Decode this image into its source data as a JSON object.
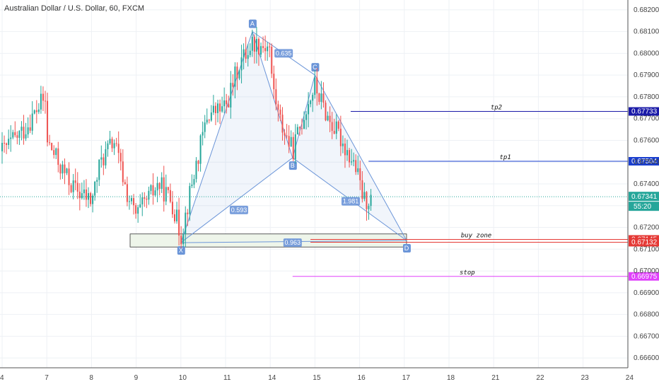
{
  "chart_data": {
    "type": "candlestick",
    "title": "Australian Dollar / U.S. Dollar, 60, FXCM",
    "ylim": [
      0.66555,
      0.68245
    ],
    "y_ticks": [
      "0.68200",
      "0.68100",
      "0.68000",
      "0.67900",
      "0.67800",
      "0.67700",
      "0.67600",
      "0.67500",
      "0.67400",
      "0.67300",
      "0.67200",
      "0.67100",
      "0.67000",
      "0.66900",
      "0.66800",
      "0.66700",
      "0.66600"
    ],
    "x_ticks": [
      "4",
      "7",
      "8",
      "9",
      "10",
      "11",
      "14",
      "15",
      "16",
      "17",
      "18",
      "21",
      "22",
      "23",
      "24"
    ],
    "current_price": {
      "value": "0.67341",
      "countdown": "55:20",
      "color": "#26a69a"
    },
    "pattern": {
      "points": [
        {
          "label": "X",
          "x": 10.0,
          "y": 0.6713
        },
        {
          "label": "A",
          "x": 11.6,
          "y": 0.681
        },
        {
          "label": "B",
          "x": 14.5,
          "y": 0.6752
        },
        {
          "label": "C",
          "x": 15.0,
          "y": 0.679
        },
        {
          "label": "D",
          "x": 17.05,
          "y": 0.6714
        }
      ],
      "ratios": [
        {
          "label": "0.635",
          "x": 14.3,
          "y": 0.68
        },
        {
          "label": "0.593",
          "x": 11.3,
          "y": 0.6728
        },
        {
          "label": "1.981",
          "x": 15.8,
          "y": 0.6732
        },
        {
          "label": "0.963",
          "x": 14.5,
          "y": 0.6713
        }
      ],
      "color": "#6b95d8"
    },
    "levels": [
      {
        "label": "tp2",
        "value": 0.67733,
        "tag": "0.67733",
        "from_x": 15.8,
        "color": "#1a1aa8"
      },
      {
        "label": "tp1",
        "value": 0.67504,
        "tag": "0.67504",
        "from_x": 16.2,
        "color": "#1a3fd0"
      },
      {
        "label": "buy zone",
        "value": 0.67145,
        "tag": "0.67145",
        "from_x": 14.9,
        "color": "#e53935"
      },
      {
        "label": "",
        "value": 0.67132,
        "tag": "0.67132",
        "from_x": 14.9,
        "color": "#e53935"
      },
      {
        "label": "stop",
        "value": 0.66975,
        "tag": "0.66975",
        "from_x": 14.5,
        "color": "#e040fb"
      }
    ],
    "zone_box": {
      "x_start": 8.9,
      "x_end": 17.05,
      "y_top": 0.6717,
      "y_bottom": 0.6711
    },
    "colors": {
      "up": "#26a69a",
      "down": "#ef5350",
      "grid": "#eef1f5",
      "axis": "#555555"
    }
  }
}
